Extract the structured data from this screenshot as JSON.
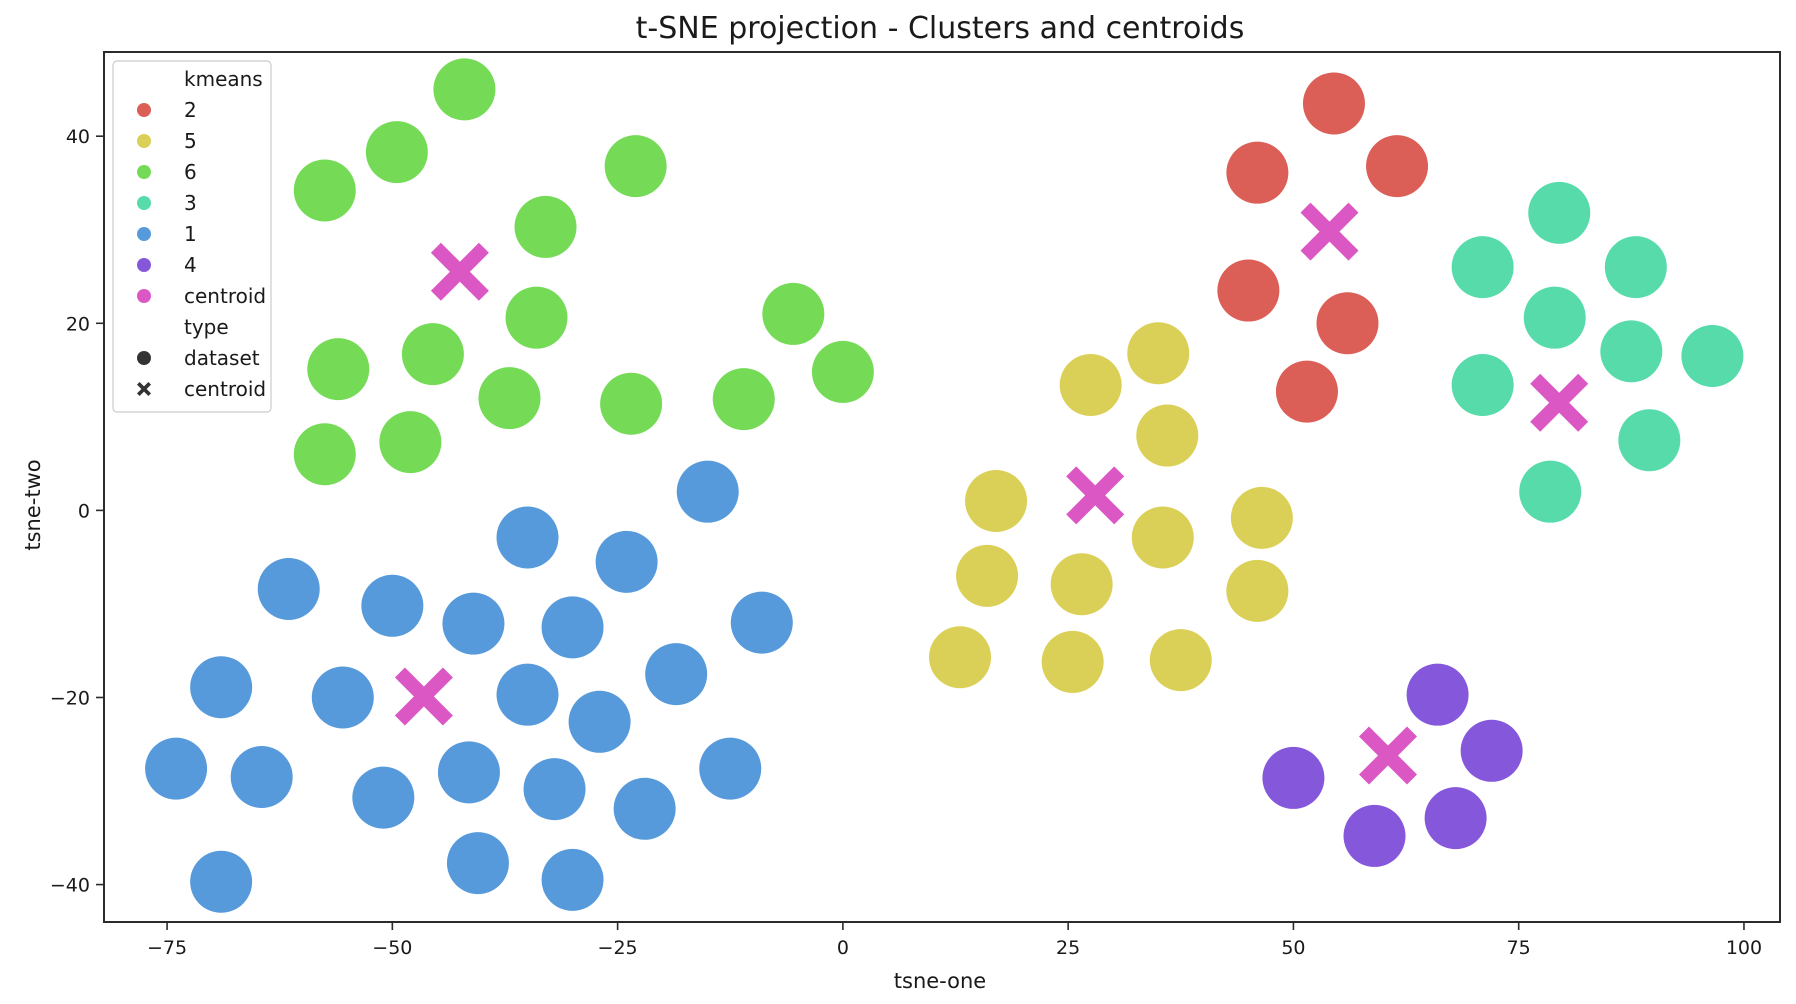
{
  "chart_data": {
    "type": "scatter",
    "title": "t-SNE projection - Clusters and centroids",
    "xlabel": "tsne-one",
    "ylabel": "tsne-two",
    "xlim": [
      -82,
      104
    ],
    "ylim": [
      -44,
      49
    ],
    "xticks": [
      -75,
      -50,
      -25,
      0,
      25,
      50,
      75,
      100
    ],
    "yticks": [
      -40,
      -20,
      0,
      20,
      40
    ],
    "xtick_labels": [
      "−75",
      "−50",
      "−25",
      "0",
      "25",
      "50",
      "75",
      "100"
    ],
    "ytick_labels": [
      "−40",
      "−20",
      "0",
      "20",
      "40"
    ],
    "grid": false,
    "legend_position": "top-left",
    "legend": {
      "hue_title": "kmeans",
      "hue_entries": [
        {
          "label": "2",
          "color": "#db5f57"
        },
        {
          "label": "5",
          "color": "#dbd057"
        },
        {
          "label": "6",
          "color": "#75db57"
        },
        {
          "label": "3",
          "color": "#57dbab"
        },
        {
          "label": "1",
          "color": "#579adb"
        },
        {
          "label": "4",
          "color": "#8557db"
        },
        {
          "label": "centroid",
          "color": "#db57c4"
        }
      ],
      "style_title": "type",
      "style_entries": [
        {
          "label": "dataset",
          "marker": "circle"
        },
        {
          "label": "centroid",
          "marker": "x"
        }
      ]
    },
    "series": [
      {
        "name": "6",
        "color": "#75db57",
        "marker": "circle",
        "x": [
          -42,
          -49.5,
          -57.5,
          -23,
          -33,
          -34,
          -45.5,
          -56,
          -37,
          -23.5,
          -48,
          -57.5,
          -5.5,
          0,
          -11
        ],
        "y": [
          45,
          38.3,
          34.2,
          36.8,
          30.3,
          20.6,
          16.7,
          15.1,
          12,
          11.4,
          7.3,
          6,
          21,
          14.8,
          11.9
        ]
      },
      {
        "name": "2",
        "color": "#db5f57",
        "marker": "circle",
        "x": [
          54.5,
          46,
          61.5,
          45,
          56,
          51.5
        ],
        "y": [
          43.5,
          36.1,
          36.8,
          23.5,
          20,
          12.7
        ]
      },
      {
        "name": "3",
        "color": "#57dbab",
        "marker": "circle",
        "x": [
          79.5,
          71,
          88,
          79,
          87.5,
          96.5,
          71,
          89.5,
          78.5
        ],
        "y": [
          31.8,
          26,
          26,
          20.6,
          17,
          16.5,
          13.4,
          7.5,
          2
        ]
      },
      {
        "name": "5",
        "color": "#dbd057",
        "marker": "circle",
        "x": [
          35,
          27.5,
          36,
          17,
          46.5,
          35.5,
          16,
          26.5,
          46,
          13,
          25.5,
          37.5
        ],
        "y": [
          16.8,
          13.4,
          8,
          1,
          -0.8,
          -2.9,
          -7,
          -7.9,
          -8.6,
          -15.7,
          -16.2,
          -16
        ],
        "note": ""
      },
      {
        "name": "1",
        "color": "#579adb",
        "marker": "circle",
        "x": [
          -15,
          -35,
          -24,
          -61.5,
          -50,
          -41,
          -30,
          -9,
          -69,
          -55.5,
          -35,
          -18.5,
          -27,
          -74,
          -64.5,
          -41.5,
          -32,
          -12.5,
          -51,
          -22,
          -69,
          -40.5,
          -30
        ],
        "y": [
          2,
          -2.9,
          -5.5,
          -8.4,
          -10.2,
          -12.1,
          -12.5,
          -12,
          -18.9,
          -20,
          -19.7,
          -17.5,
          -22.6,
          -27.6,
          -28.5,
          -28,
          -29.8,
          -27.6,
          -30.7,
          -31.9,
          -39.7,
          -37.7,
          -39.5
        ]
      },
      {
        "name": "4",
        "color": "#8557db",
        "marker": "circle",
        "x": [
          66,
          72,
          50,
          68,
          59
        ],
        "y": [
          -19.7,
          -25.7,
          -28.6,
          -32.9,
          -34.8
        ]
      },
      {
        "name": "centroid",
        "color": "#db57c4",
        "marker": "x",
        "x": [
          -42.5,
          54,
          79.5,
          28,
          -46.5,
          60.5
        ],
        "y": [
          25.5,
          29.8,
          11.5,
          1.6,
          -19.9,
          -26.2
        ]
      }
    ]
  }
}
